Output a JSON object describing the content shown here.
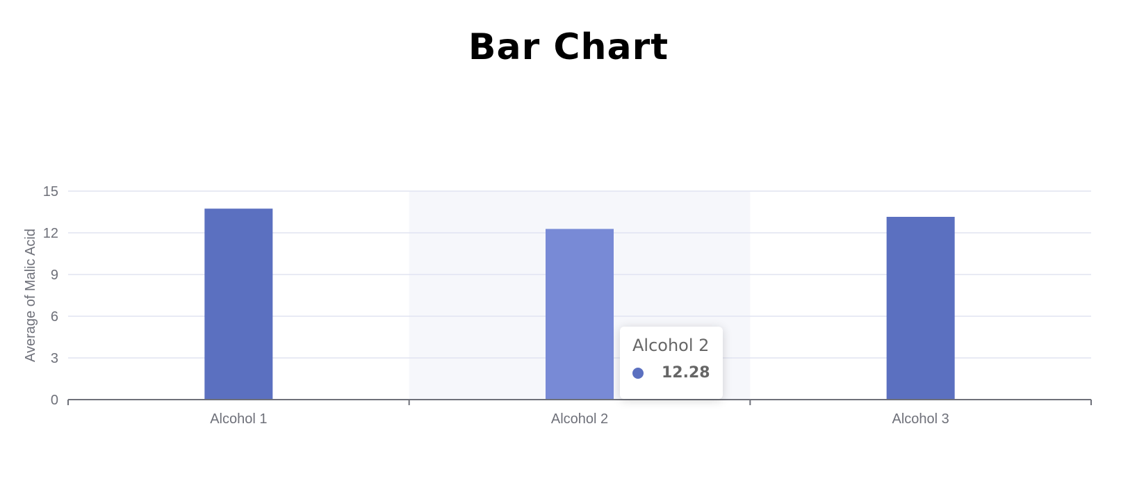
{
  "title": "Bar Chart",
  "colors": {
    "bar": "#5b70c0",
    "bar_highlight": "#788ad6",
    "highlight_band": "#f6f7fb",
    "gridline": "#e0e3f1",
    "axis": "#6e7079",
    "tick_text": "#6e7079"
  },
  "chart_data": {
    "type": "bar",
    "title": "Bar Chart",
    "xlabel": "",
    "ylabel": "Average of Malic Acid",
    "categories": [
      "Alcohol 1",
      "Alcohol 2",
      "Alcohol 3"
    ],
    "values": [
      13.74,
      12.28,
      13.15
    ],
    "ylim": [
      0,
      15
    ],
    "yticks": [
      0,
      3,
      6,
      9,
      12,
      15
    ],
    "grid": true,
    "highlighted_category": "Alcohol 2"
  },
  "tooltip": {
    "title": "Alcohol 2",
    "value": "12.28"
  }
}
